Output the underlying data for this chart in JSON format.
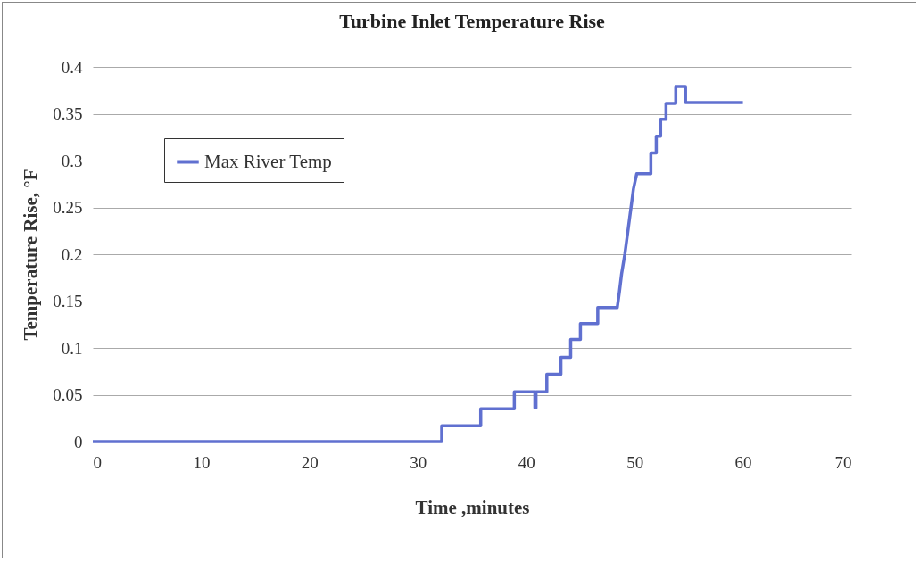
{
  "chart_data": {
    "type": "line",
    "title": "Turbine Inlet Temperature Rise",
    "xlabel": "Time ,minutes",
    "ylabel": "Temperature Rise, °F",
    "x": [
      0,
      32.2,
      32.2,
      35.8,
      35.8,
      38.9,
      38.9,
      40.8,
      40.8,
      40.9,
      40.9,
      41.9,
      41.9,
      43.2,
      43.2,
      44.1,
      44.1,
      45.0,
      45.0,
      46.6,
      46.6,
      48.4,
      48.6,
      48.8,
      49.1,
      49.9,
      50.2,
      51.5,
      51.5,
      52.0,
      52.0,
      52.4,
      52.4,
      52.9,
      52.9,
      53.8,
      53.8,
      54.7,
      54.7,
      60
    ],
    "series": [
      {
        "name": "Max River Temp",
        "color": "#6070d0",
        "values": [
          0,
          0,
          0.017,
          0.017,
          0.035,
          0.035,
          0.053,
          0.053,
          0.036,
          0.036,
          0.053,
          0.053,
          0.072,
          0.072,
          0.09,
          0.09,
          0.109,
          0.109,
          0.126,
          0.126,
          0.143,
          0.143,
          0.16,
          0.179,
          0.2,
          0.27,
          0.286,
          0.286,
          0.308,
          0.308,
          0.326,
          0.326,
          0.344,
          0.344,
          0.361,
          0.361,
          0.379,
          0.379,
          0.362,
          0.362
        ]
      }
    ],
    "xlim": [
      0,
      70
    ],
    "xticks": [
      0,
      10,
      20,
      30,
      40,
      50,
      60,
      70
    ],
    "ylim": [
      0,
      0.4
    ],
    "yticks": [
      0,
      0.05,
      0.1,
      0.15,
      0.2,
      0.25,
      0.3,
      0.35,
      0.4
    ],
    "grid": "y",
    "legend": "top left",
    "marker": "none",
    "line_style": "solid"
  }
}
